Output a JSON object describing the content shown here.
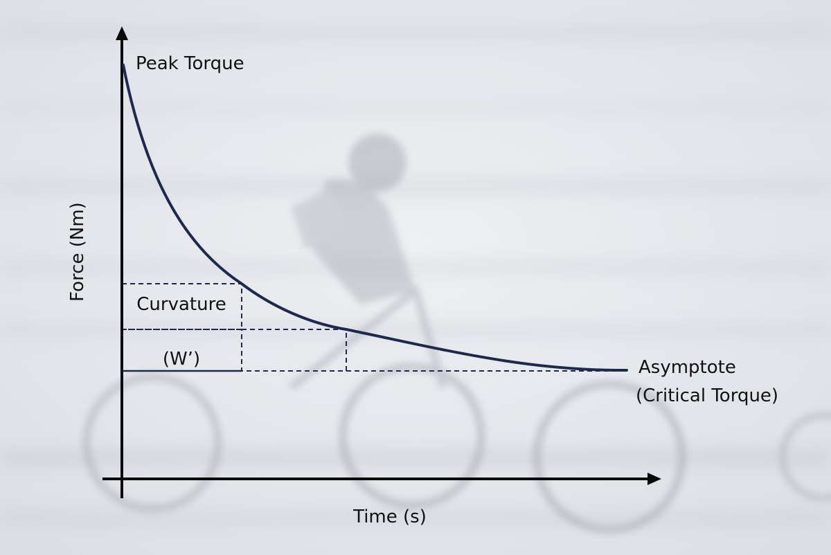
{
  "diagram": {
    "y_axis_label": "Force (Nm)",
    "x_axis_label": "Time (s)",
    "peak_label": "Peak Torque",
    "asymptote_label_line1": "Asymptote",
    "asymptote_label_line2": "(Critical Torque)",
    "curvature_label": "Curvature",
    "wprime_label": "(W’)",
    "colors": {
      "curve": "#1d2a4f",
      "axis": "#0a0a0a",
      "dashed": "#1d2a4f",
      "background": "#e6e8ec"
    }
  }
}
